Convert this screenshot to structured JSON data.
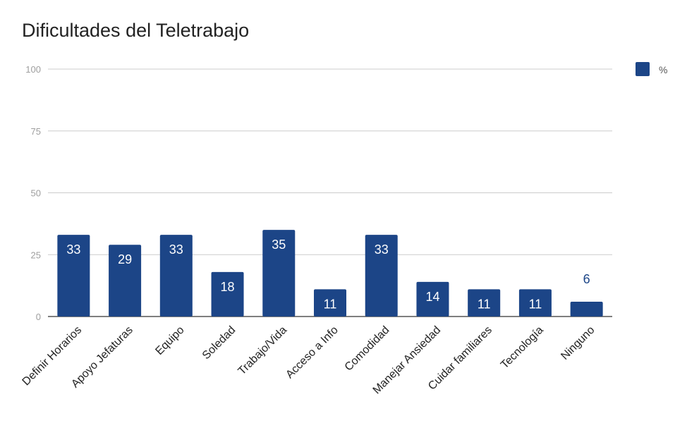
{
  "chart_data": {
    "type": "bar",
    "title": "Dificultades del Teletrabajo",
    "categories": [
      "Definir Horarios",
      "Apoyo Jefaturas",
      "Equipo",
      "Soledad",
      "Trabajo/Vida",
      "Acceso a Info",
      "Comodidad",
      "Manejar Ansiedad",
      "Cuidar familiares",
      "Tecnología",
      "Ninguno"
    ],
    "series": [
      {
        "name": "%",
        "values": [
          33,
          29,
          33,
          18,
          35,
          11,
          33,
          14,
          11,
          11,
          6
        ]
      }
    ],
    "ylim": [
      0,
      100
    ],
    "yticks": [
      "0",
      "25",
      "50",
      "75",
      "100"
    ],
    "grid": true,
    "legend_position": "right",
    "colors": {
      "bar": "#1c4587",
      "label_inside": "#ffffff",
      "label_outside": "#1c4587",
      "grid": "#cccccc",
      "axis": "#333333"
    }
  }
}
